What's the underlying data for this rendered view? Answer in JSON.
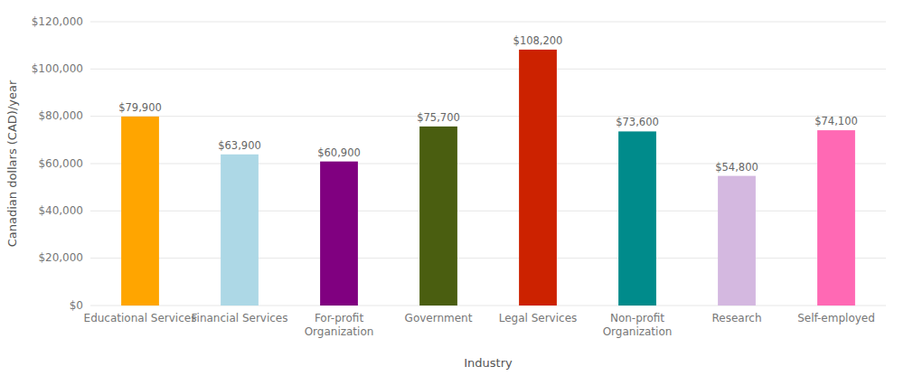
{
  "chart_data": {
    "type": "bar",
    "categories": [
      "Educational Services",
      "Financial Services",
      "For-profit\nOrganization",
      "Government",
      "Legal Services",
      "Non-profit\nOrganization",
      "Research",
      "Self-employed"
    ],
    "values": [
      79900,
      63900,
      60900,
      75700,
      108200,
      73600,
      54800,
      74100
    ],
    "value_labels": [
      "$79,900",
      "$63,900",
      "$60,900",
      "$75,700",
      "$108,200",
      "$73,600",
      "$54,800",
      "$74,100"
    ],
    "colors": [
      "#FFA500",
      "#ADD8E6",
      "#800080",
      "#4A5E10",
      "#CC2200",
      "#008B8B",
      "#D4B8E0",
      "#FF69B4"
    ],
    "xlabel": "Industry",
    "ylabel": "Canadian dollars (CAD)/year",
    "ylim": [
      0,
      120000
    ],
    "yticks": [
      {
        "value": 0,
        "label": "$0"
      },
      {
        "value": 20000,
        "label": "$20,000"
      },
      {
        "value": 40000,
        "label": "$40,000"
      },
      {
        "value": 60000,
        "label": "$60,000"
      },
      {
        "value": 80000,
        "label": "$80,000"
      },
      {
        "value": 100000,
        "label": "$100,000"
      },
      {
        "value": 120000,
        "label": "$120,000"
      }
    ],
    "grid": true,
    "data_labels": true
  }
}
